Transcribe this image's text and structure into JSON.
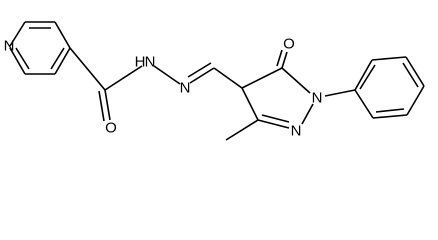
{
  "atoms": [
    {
      "label": "N"
    },
    {
      "label": "O"
    },
    {
      "label": "H"
    },
    {
      "label": "N"
    },
    {
      "label": "N"
    },
    {
      "label": "O"
    },
    {
      "label": "N"
    },
    {
      "label": "N"
    }
  ]
}
